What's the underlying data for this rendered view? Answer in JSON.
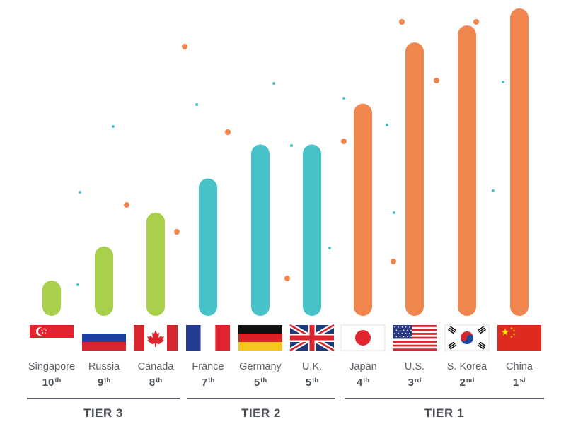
{
  "chart_data": {
    "type": "bar",
    "categories": [
      "Singapore",
      "Russia",
      "Canada",
      "France",
      "Germany",
      "U.K.",
      "Japan",
      "U.S.",
      "S. Korea",
      "China"
    ],
    "ranks": [
      {
        "num": "10",
        "suffix": "th"
      },
      {
        "num": "9",
        "suffix": "th"
      },
      {
        "num": "8",
        "suffix": "th"
      },
      {
        "num": "7",
        "suffix": "th"
      },
      {
        "num": "5",
        "suffix": "th"
      },
      {
        "num": "5",
        "suffix": "th"
      },
      {
        "num": "4",
        "suffix": "th"
      },
      {
        "num": "3",
        "suffix": "rd"
      },
      {
        "num": "2",
        "suffix": "nd"
      },
      {
        "num": "1",
        "suffix": "st"
      }
    ],
    "values": [
      1,
      2,
      3,
      4,
      5,
      5,
      6.2,
      8,
      8.5,
      9
    ],
    "tiers": [
      "TIER 3",
      "TIER 3",
      "TIER 3",
      "TIER 2",
      "TIER 2",
      "TIER 2",
      "TIER 1",
      "TIER 1",
      "TIER 1",
      "TIER 1"
    ],
    "tier_labels": [
      "TIER 3",
      "TIER 2",
      "TIER 1"
    ],
    "flags": [
      "singapore",
      "russia",
      "canada",
      "france",
      "germany",
      "uk",
      "japan",
      "us",
      "south-korea",
      "china"
    ],
    "ylim": [
      0,
      9
    ],
    "grid": false,
    "colors": {
      "TIER 3": "#a8d04b",
      "TIER 2": "#48c2c9",
      "TIER 1": "#f0854d"
    }
  },
  "colors": {
    "text": "#5c6167",
    "tier_line": "#5a6068",
    "dot_orange": "#f0854d",
    "dot_teal": "#48c2c9"
  }
}
